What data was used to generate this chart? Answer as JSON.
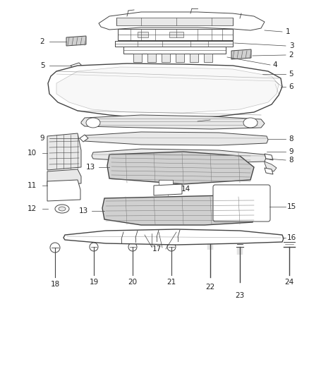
{
  "bg_color": "#ffffff",
  "line_color": "#444444",
  "label_color": "#222222",
  "gray_fill": "#d0d0d0",
  "light_gray": "#e8e8e8",
  "mid_gray": "#b0b0b0"
}
